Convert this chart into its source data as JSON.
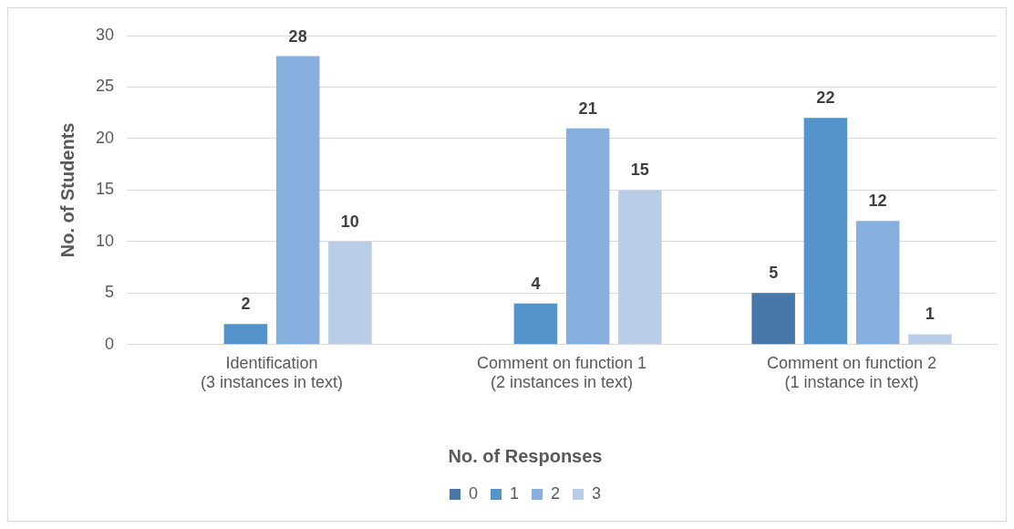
{
  "chart_data": {
    "type": "bar",
    "ylabel": "No. of Students",
    "legend_title": "No. of Responses",
    "categories": [
      "Identification\n(3 instances in text)",
      "Comment on function 1\n(2 instances in text)",
      "Comment on function 2\n(1 instance in text)"
    ],
    "series": [
      {
        "name": "0",
        "color": "#4677a8",
        "values": [
          null,
          null,
          5
        ]
      },
      {
        "name": "1",
        "color": "#5593cb",
        "values": [
          2,
          4,
          22
        ]
      },
      {
        "name": "2",
        "color": "#87afdd",
        "values": [
          28,
          21,
          12
        ]
      },
      {
        "name": "3",
        "color": "#b9cde9",
        "values": [
          10,
          15,
          1
        ]
      }
    ],
    "ylim": [
      0,
      30
    ],
    "yticks": [
      0,
      5,
      10,
      15,
      20,
      25,
      30
    ],
    "grid": "y",
    "legend": "bottom",
    "data_labels": true
  }
}
